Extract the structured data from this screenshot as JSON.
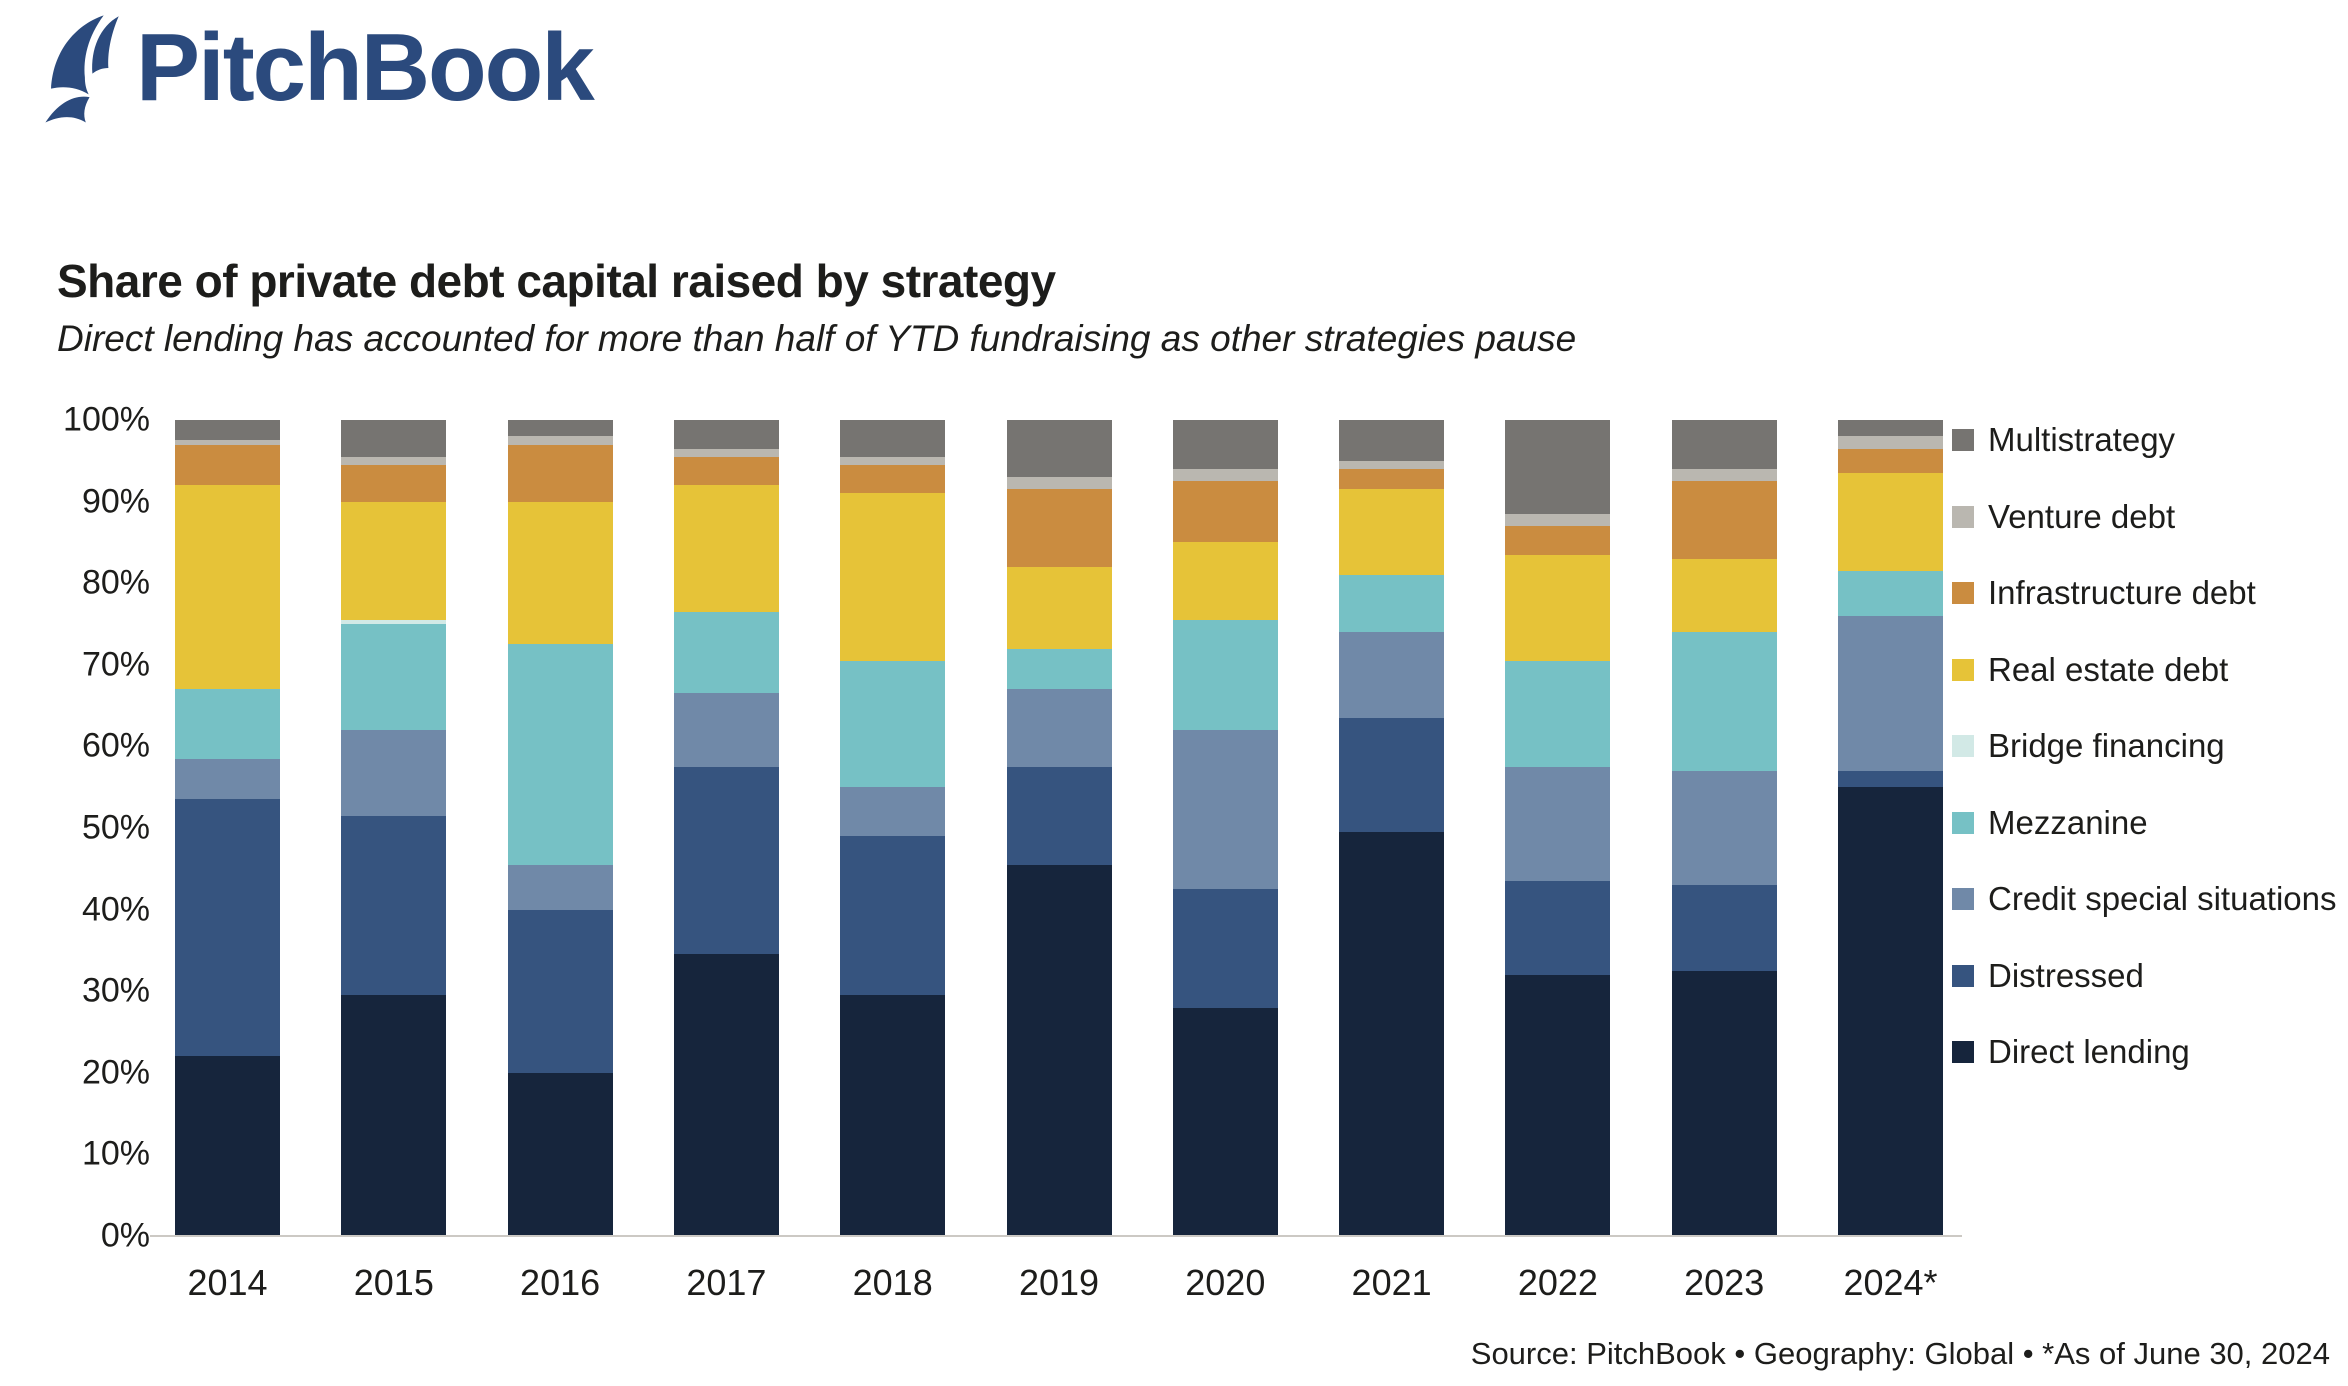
{
  "logo": {
    "text": "PitchBook",
    "color": "#2b4a7d"
  },
  "header": {
    "title": "Share of private debt capital raised by strategy",
    "subtitle": "Direct lending has accounted for more than half of YTD fundraising as other strategies pause"
  },
  "footer": {
    "source": "Source: PitchBook  •  Geography: Global  •  *As of June 30, 2024"
  },
  "chart_data": {
    "type": "bar",
    "stacked": true,
    "stack_unit": "percent",
    "title": "Share of private debt capital raised by strategy",
    "subtitle": "Direct lending has accounted for more than half of YTD fundraising as other strategies pause",
    "categories": [
      "2014",
      "2015",
      "2016",
      "2017",
      "2018",
      "2019",
      "2020",
      "2021",
      "2022",
      "2023",
      "2024*"
    ],
    "y_ticks": [
      "0%",
      "10%",
      "20%",
      "30%",
      "40%",
      "50%",
      "60%",
      "70%",
      "80%",
      "90%",
      "100%"
    ],
    "ylim": [
      0,
      100
    ],
    "grid": false,
    "legend_position": "right",
    "series_note": "legend order top-to-bottom; bars stack bottom-to-top in reverse of this order",
    "series": [
      {
        "name": "Multistrategy",
        "color": "#767471",
        "values": [
          2.5,
          4.5,
          2,
          3.5,
          4.5,
          7,
          6,
          5,
          11.5,
          6,
          2
        ]
      },
      {
        "name": "Venture debt",
        "color": "#bab7b0",
        "values": [
          0.5,
          1,
          1,
          1,
          1,
          1.5,
          1.5,
          1,
          1.5,
          1.5,
          1.5
        ]
      },
      {
        "name": "Infrastructure debt",
        "color": "#ca8c40",
        "values": [
          5,
          4.5,
          7,
          3.5,
          3.5,
          9.5,
          7.5,
          2.5,
          3.5,
          9.5,
          3
        ]
      },
      {
        "name": "Real estate debt",
        "color": "#e6c338",
        "values": [
          25,
          14.5,
          17.5,
          15.5,
          20.5,
          10,
          9.5,
          10.5,
          13,
          9,
          12
        ]
      },
      {
        "name": "Bridge financing",
        "color": "#d2e9e6",
        "values": [
          0,
          0.5,
          0,
          0,
          0,
          0,
          0,
          0,
          0,
          0,
          0
        ]
      },
      {
        "name": "Mezzanine",
        "color": "#76c1c5",
        "values": [
          8.5,
          13,
          27,
          10,
          15.5,
          5,
          13.5,
          7,
          13,
          17,
          5.5
        ]
      },
      {
        "name": "Credit special situations",
        "color": "#7089a8",
        "values": [
          5,
          10.5,
          5.5,
          9,
          6,
          9.5,
          19.5,
          10.5,
          14,
          14,
          19
        ]
      },
      {
        "name": "Distressed",
        "color": "#36547f",
        "values": [
          31.5,
          22,
          20,
          23,
          19.5,
          12,
          14.5,
          14,
          11.5,
          10.5,
          2
        ]
      },
      {
        "name": "Direct lending",
        "color": "#16253c",
        "values": [
          22,
          29.5,
          20,
          34.5,
          29.5,
          45.5,
          28,
          49.5,
          32,
          32.5,
          55
        ]
      }
    ]
  }
}
